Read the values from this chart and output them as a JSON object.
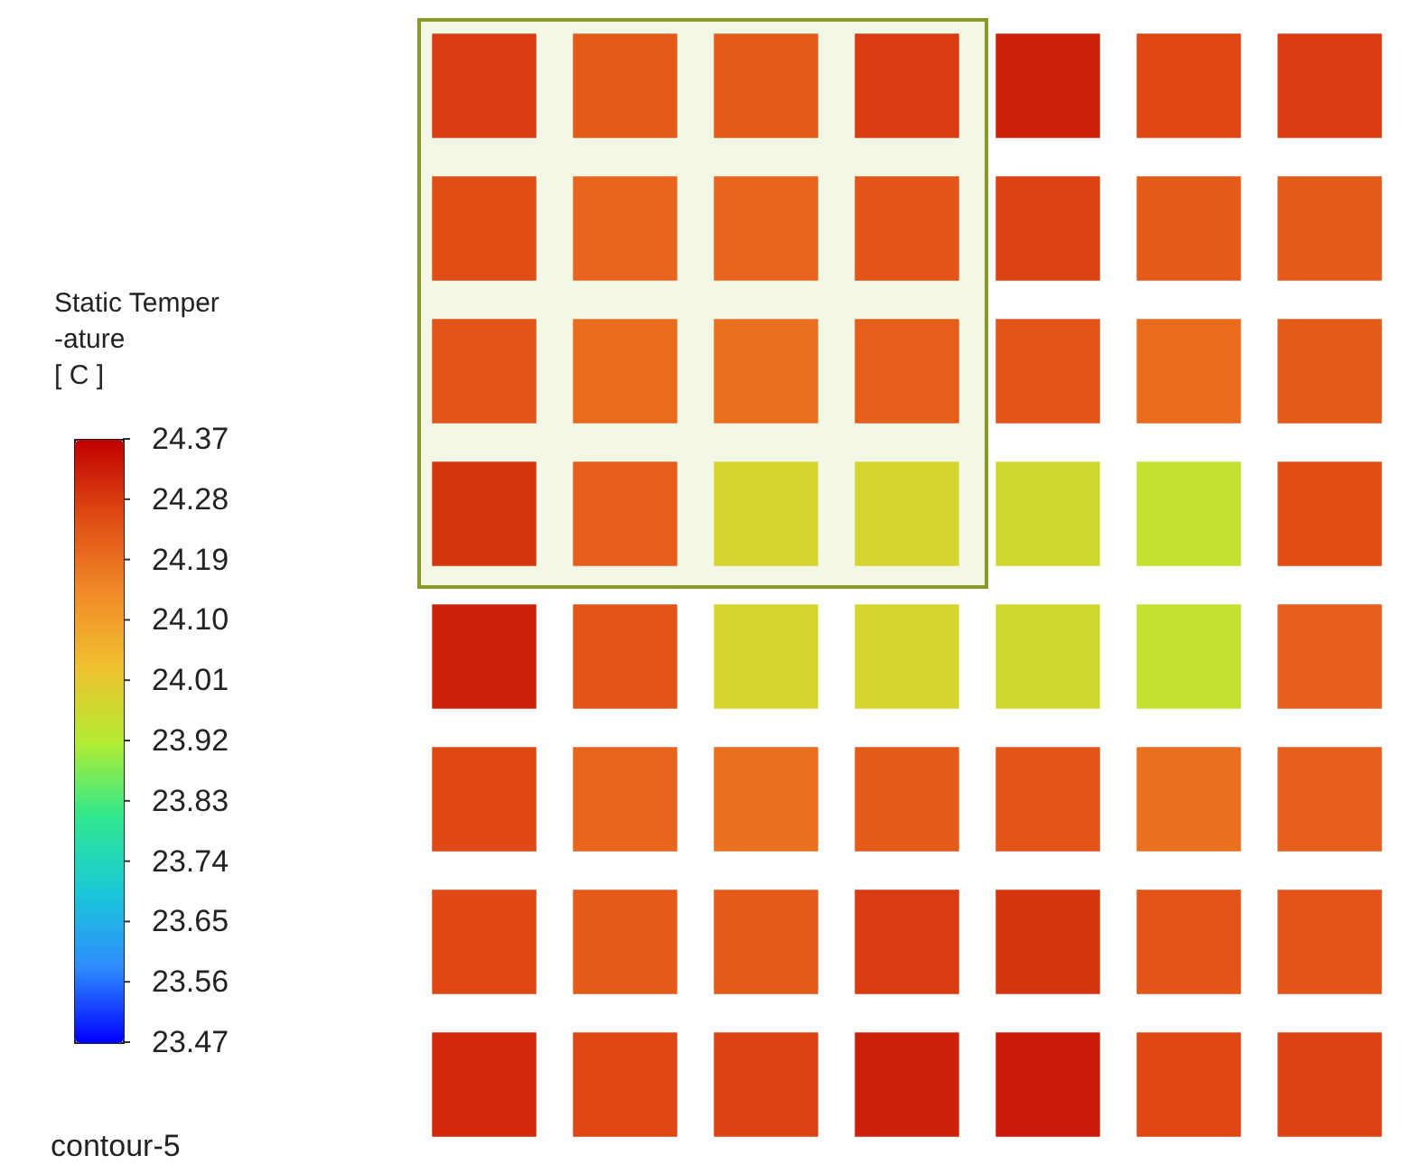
{
  "chart_data": {
    "type": "heatmap",
    "clabel": "Static Temper\n-ature\n[ C ]",
    "annotations": [
      "contour-5"
    ],
    "categories": [
      null,
      null,
      null,
      null,
      null,
      null,
      null
    ],
    "y_categories": [
      null,
      null,
      null,
      null,
      null,
      null,
      null,
      null
    ],
    "cells": [
      [
        24.28,
        24.23,
        24.23,
        24.28,
        24.32,
        24.26,
        24.28
      ],
      [
        24.25,
        24.21,
        24.21,
        24.24,
        24.27,
        24.23,
        24.23
      ],
      [
        24.24,
        24.2,
        24.19,
        24.22,
        24.24,
        24.2,
        24.23
      ],
      [
        24.29,
        24.22,
        23.98,
        23.98,
        23.97,
        23.95,
        24.25
      ],
      [
        24.32,
        24.24,
        23.98,
        23.98,
        23.97,
        23.95,
        24.22
      ],
      [
        24.26,
        24.21,
        24.19,
        24.23,
        24.24,
        24.19,
        24.22
      ],
      [
        24.26,
        24.23,
        24.23,
        24.28,
        24.29,
        24.24,
        24.24
      ],
      [
        24.31,
        24.26,
        24.27,
        24.32,
        24.33,
        24.26,
        24.27
      ]
    ],
    "clim": [
      23.47,
      24.37
    ],
    "cticks": [
      {
        "value": 23.47,
        "label": "23.47"
      },
      {
        "value": 23.56,
        "label": "23.56"
      },
      {
        "value": 23.65,
        "label": "23.65"
      },
      {
        "value": 23.74,
        "label": "23.74"
      },
      {
        "value": 23.83,
        "label": "23.83"
      },
      {
        "value": 23.92,
        "label": "23.92"
      },
      {
        "value": 24.01,
        "label": "24.01"
      },
      {
        "value": 24.1,
        "label": "24.10"
      },
      {
        "value": 24.19,
        "label": "24.19"
      },
      {
        "value": 24.28,
        "label": "24.28"
      },
      {
        "value": 24.37,
        "label": "24.37"
      }
    ]
  }
}
